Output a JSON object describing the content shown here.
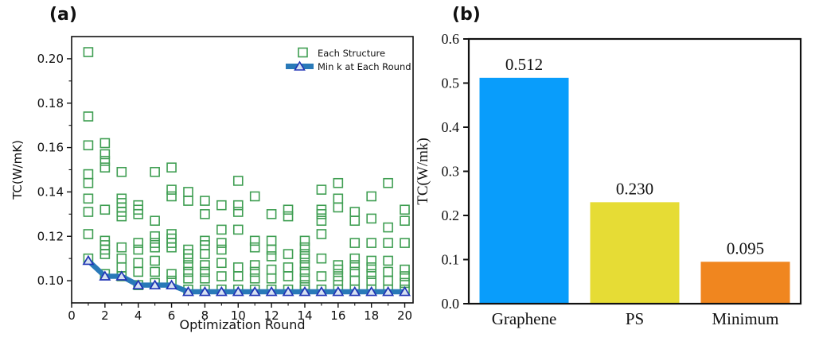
{
  "panels": {
    "a": {
      "label": "(a)"
    },
    "b": {
      "label": "(b)"
    }
  },
  "chart_data": [
    {
      "type": "scatter",
      "panel": "a",
      "xlabel": "Optimization Round",
      "ylabel": "TC(W/mK)",
      "xlim": [
        0,
        20.5
      ],
      "ylim": [
        0.09,
        0.21
      ],
      "xtick_labels": [
        "0",
        "2",
        "4",
        "6",
        "8",
        "10",
        "12",
        "14",
        "16",
        "18",
        "20"
      ],
      "ytick_labels": [
        "0.10",
        "0.12",
        "0.14",
        "0.16",
        "0.18",
        "0.20"
      ],
      "grid": false,
      "legend_position": "upper right",
      "legend": [
        {
          "label": "Each Structure",
          "marker": "open-square",
          "color": "#3f9e52"
        },
        {
          "label": "Min k at Each Round",
          "marker": "triangle-on-line",
          "line_color": "#2979b8",
          "marker_edge_color": "#2135b5"
        }
      ],
      "series": [
        {
          "name": "Each Structure",
          "type": "scatter",
          "marker": "open-square",
          "color": "#3f9e52",
          "points_by_round": [
            {
              "x": 1,
              "y": [
                0.203,
                0.174,
                0.161,
                0.148,
                0.144,
                0.137,
                0.131,
                0.121,
                0.11
              ]
            },
            {
              "x": 2,
              "y": [
                0.162,
                0.157,
                0.154,
                0.151,
                0.132,
                0.118,
                0.116,
                0.114,
                0.112,
                0.103
              ]
            },
            {
              "x": 3,
              "y": [
                0.149,
                0.137,
                0.135,
                0.133,
                0.131,
                0.129,
                0.115,
                0.11,
                0.106,
                0.102
              ]
            },
            {
              "x": 4,
              "y": [
                0.134,
                0.132,
                0.13,
                0.117,
                0.114,
                0.108,
                0.104,
                0.098
              ]
            },
            {
              "x": 5,
              "y": [
                0.149,
                0.127,
                0.12,
                0.117,
                0.115,
                0.109,
                0.104,
                0.099
              ]
            },
            {
              "x": 6,
              "y": [
                0.151,
                0.141,
                0.138,
                0.121,
                0.119,
                0.117,
                0.115,
                0.103,
                0.1
              ]
            },
            {
              "x": 7,
              "y": [
                0.14,
                0.136,
                0.114,
                0.112,
                0.11,
                0.107,
                0.104,
                0.101,
                0.096
              ]
            },
            {
              "x": 8,
              "y": [
                0.136,
                0.13,
                0.118,
                0.116,
                0.112,
                0.107,
                0.104,
                0.101,
                0.096
              ]
            },
            {
              "x": 9,
              "y": [
                0.134,
                0.123,
                0.117,
                0.114,
                0.108,
                0.102,
                0.096
              ]
            },
            {
              "x": 10,
              "y": [
                0.145,
                0.134,
                0.131,
                0.123,
                0.106,
                0.102,
                0.096
              ]
            },
            {
              "x": 11,
              "y": [
                0.138,
                0.118,
                0.115,
                0.107,
                0.104,
                0.101,
                0.096
              ]
            },
            {
              "x": 12,
              "y": [
                0.13,
                0.118,
                0.114,
                0.111,
                0.105,
                0.101,
                0.096
              ]
            },
            {
              "x": 13,
              "y": [
                0.132,
                0.129,
                0.112,
                0.106,
                0.102,
                0.096
              ]
            },
            {
              "x": 14,
              "y": [
                0.118,
                0.115,
                0.112,
                0.11,
                0.107,
                0.104,
                0.101,
                0.098,
                0.096
              ]
            },
            {
              "x": 15,
              "y": [
                0.141,
                0.132,
                0.13,
                0.127,
                0.121,
                0.11,
                0.102,
                0.096
              ]
            },
            {
              "x": 16,
              "y": [
                0.144,
                0.137,
                0.133,
                0.107,
                0.105,
                0.102,
                0.1,
                0.096
              ]
            },
            {
              "x": 17,
              "y": [
                0.131,
                0.127,
                0.117,
                0.11,
                0.107,
                0.104,
                0.1,
                0.096
              ]
            },
            {
              "x": 18,
              "y": [
                0.138,
                0.128,
                0.117,
                0.109,
                0.106,
                0.103,
                0.1,
                0.096
              ]
            },
            {
              "x": 19,
              "y": [
                0.144,
                0.124,
                0.117,
                0.109,
                0.104,
                0.1,
                0.096
              ]
            },
            {
              "x": 20,
              "y": [
                0.132,
                0.127,
                0.117,
                0.105,
                0.102,
                0.099,
                0.096
              ]
            }
          ]
        },
        {
          "name": "Min k at Each Round",
          "type": "line",
          "marker": "open-triangle",
          "line_color": "#2979b8",
          "marker_edge_color": "#2135b5",
          "marker_face_color": "#d6e2f2",
          "x": [
            1,
            2,
            3,
            4,
            5,
            6,
            7,
            8,
            9,
            10,
            11,
            12,
            13,
            14,
            15,
            16,
            17,
            18,
            19,
            20
          ],
          "y": [
            0.109,
            0.102,
            0.102,
            0.098,
            0.098,
            0.098,
            0.095,
            0.095,
            0.095,
            0.095,
            0.095,
            0.095,
            0.095,
            0.095,
            0.095,
            0.095,
            0.095,
            0.095,
            0.095,
            0.095
          ]
        }
      ]
    },
    {
      "type": "bar",
      "panel": "b",
      "ylabel": "TC(W/mk)",
      "ylim": [
        0,
        0.6
      ],
      "ytick_labels": [
        "0.0",
        "0.1",
        "0.2",
        "0.3",
        "0.4",
        "0.5",
        "0.6"
      ],
      "grid": false,
      "categories": [
        "Graphene",
        "PS",
        "Minimum"
      ],
      "values": [
        0.512,
        0.23,
        0.095
      ],
      "value_labels": [
        "0.512",
        "0.230",
        "0.095"
      ],
      "colors": [
        "#099dfb",
        "#e6dc35",
        "#f0861f"
      ]
    }
  ]
}
